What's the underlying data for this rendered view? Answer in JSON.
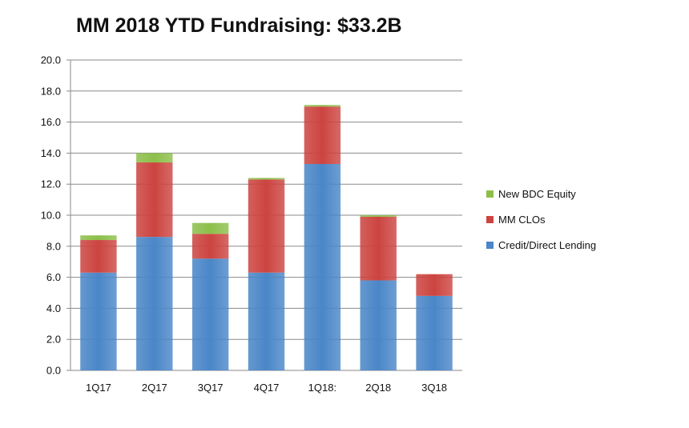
{
  "chart_data": {
    "type": "bar",
    "stacked": true,
    "title": "MM 2018 YTD Fundraising: $33.2B",
    "xlabel": "",
    "ylabel": "",
    "categories": [
      "1Q17",
      "2Q17",
      "3Q17",
      "4Q17",
      "1Q18:",
      "2Q18",
      "3Q18"
    ],
    "series": [
      {
        "name": "Credit/Direct Lending",
        "color": "#4a86c8",
        "values": [
          6.3,
          8.6,
          7.2,
          6.3,
          13.3,
          5.8,
          4.8
        ]
      },
      {
        "name": "MM CLOs",
        "color": "#cc4440",
        "values": [
          2.1,
          4.8,
          1.6,
          6.0,
          3.7,
          4.1,
          1.4
        ]
      },
      {
        "name": "New BDC Equity",
        "color": "#8cbf4a",
        "values": [
          0.3,
          0.6,
          0.7,
          0.1,
          0.1,
          0.1,
          0.0
        ]
      }
    ],
    "ylim": [
      0,
      20
    ],
    "yticks": [
      "0.0",
      "2.0",
      "4.0",
      "6.0",
      "8.0",
      "10.0",
      "12.0",
      "14.0",
      "16.0",
      "18.0",
      "20.0"
    ],
    "grid": true,
    "legend_position": "right"
  }
}
